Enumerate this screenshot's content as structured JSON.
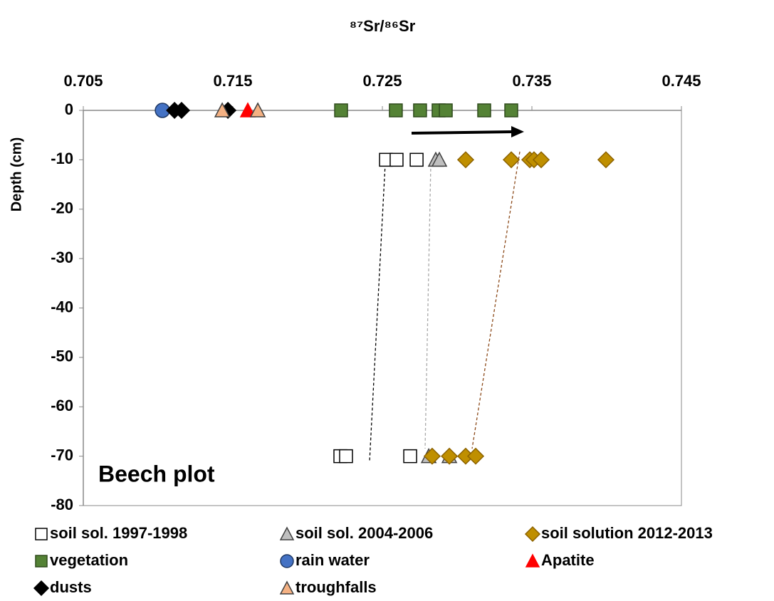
{
  "chart_data": {
    "type": "scatter",
    "title": "⁸⁷Sr/⁸⁶Sr",
    "y_label": "Depth (cm)",
    "annotation": "Beech plot",
    "xlim": [
      0.705,
      0.745
    ],
    "xticks": [
      0.705,
      0.715,
      0.725,
      0.735,
      0.745
    ],
    "ylim": [
      -80,
      0
    ],
    "yticks": [
      0,
      -10,
      -20,
      -30,
      -40,
      -50,
      -60,
      -70,
      -80
    ],
    "series": [
      {
        "name": "soil sol. 1997-1998",
        "marker": "square",
        "color": "#ffffff",
        "stroke": "#000000",
        "x": [
          0.72524,
          0.72595,
          0.72729,
          0.72219,
          0.72257,
          0.72686
        ],
        "values": [
          -10,
          -10,
          -10,
          -70,
          -70,
          -70
        ]
      },
      {
        "name": "soil sol. 2004-2006",
        "marker": "triangle",
        "color": "#bfbfbf",
        "stroke": "#404040",
        "x": [
          0.72857,
          0.72881,
          0.7281,
          0.72948
        ],
        "values": [
          -10,
          -10,
          -70,
          -70
        ]
      },
      {
        "name": "soil solution 2012-2013",
        "marker": "diamond",
        "color": "#bf8f00",
        "stroke": "#8c6200",
        "x": [
          0.73057,
          0.73362,
          0.73486,
          0.73514,
          0.73562,
          0.73995,
          0.72833,
          0.72948,
          0.73057,
          0.73124
        ],
        "values": [
          -10,
          -10,
          -10,
          -10,
          -10,
          -10,
          -70,
          -70,
          -70,
          -70
        ]
      },
      {
        "name": "vegetation",
        "marker": "square",
        "color": "#548235",
        "stroke": "#2e4a1c",
        "x": [
          0.72224,
          0.7259,
          0.72752,
          0.72876,
          0.72924,
          0.73181,
          0.73362
        ],
        "values": [
          0,
          0,
          0,
          0,
          0,
          0,
          0
        ]
      },
      {
        "name": "rain water",
        "marker": "circle",
        "color": "#4472c4",
        "stroke": "#1f3864",
        "x": [
          0.71029
        ],
        "values": [
          0
        ]
      },
      {
        "name": "Apatite",
        "marker": "triangle",
        "color": "#ff0000",
        "stroke": "#ff0000",
        "x": [
          0.716
        ],
        "values": [
          0
        ]
      },
      {
        "name": "dusts",
        "marker": "diamond",
        "color": "#000000",
        "stroke": "#000000",
        "x": [
          0.7111,
          0.71157,
          0.71467
        ],
        "values": [
          0,
          0,
          0
        ]
      },
      {
        "name": "troughfalls",
        "marker": "triangle",
        "color": "#f4b183",
        "stroke": "#404040",
        "x": [
          0.71429,
          0.71667
        ],
        "values": [
          0,
          0
        ]
      }
    ]
  }
}
